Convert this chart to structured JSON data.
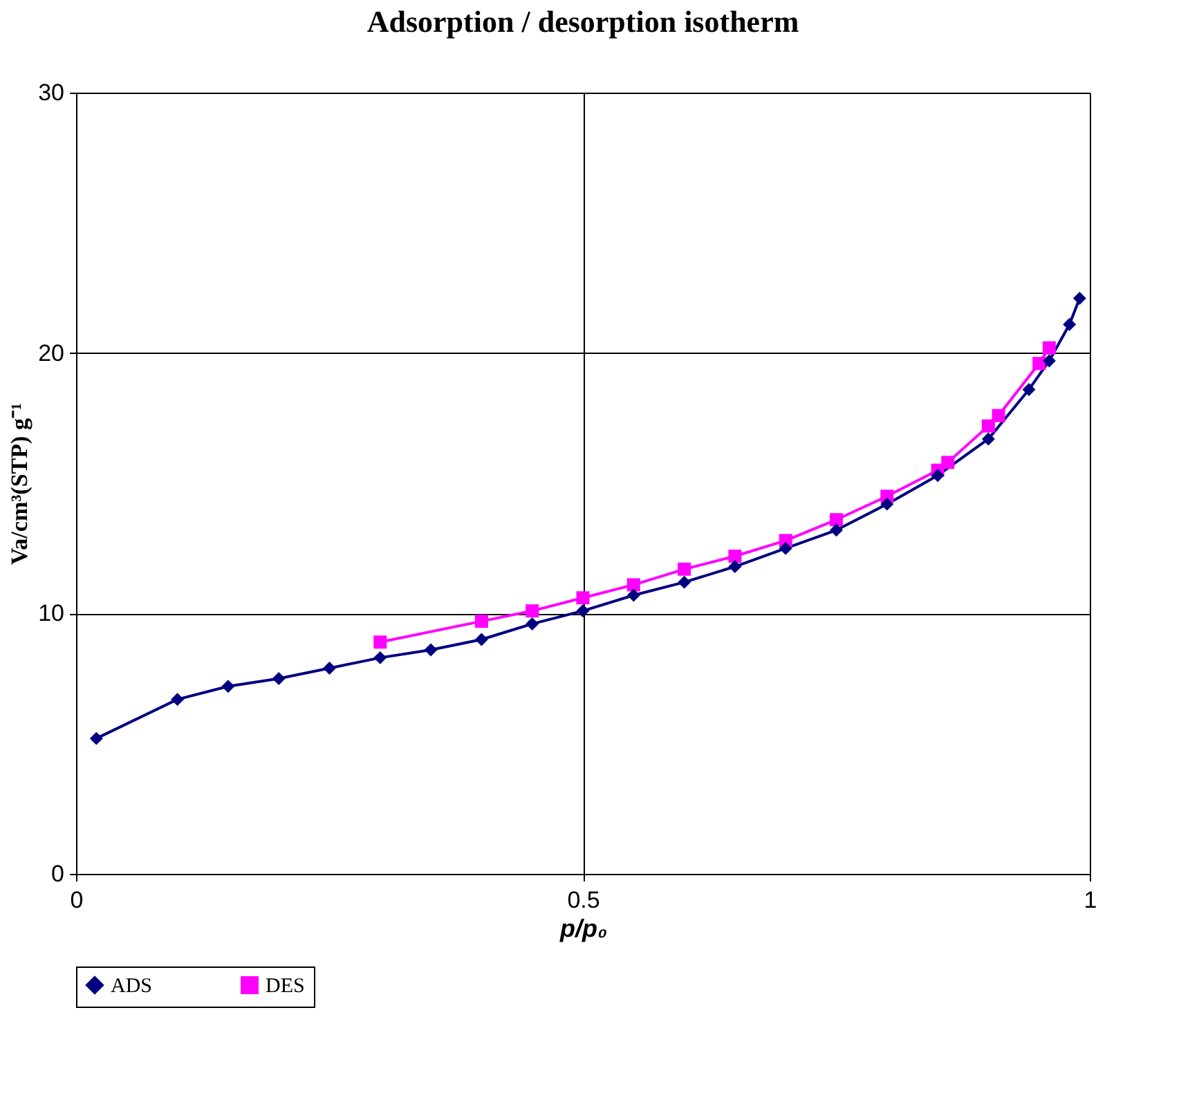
{
  "chart_data": {
    "type": "line",
    "title": "Adsorption / desorption isotherm",
    "xlabel": "p/p₀",
    "ylabel": "Va/cm³(STP) g⁻¹",
    "xlim": [
      0,
      1
    ],
    "xticks": [
      0,
      0.5,
      1
    ],
    "ylim": [
      0,
      30
    ],
    "yticks": [
      0,
      10,
      20,
      30
    ],
    "grid": true,
    "legend": "bottom",
    "line_style": "solid",
    "series": [
      {
        "name": "ADS",
        "color": "#000080",
        "marker": "diamond",
        "x": [
          0.02,
          0.1,
          0.15,
          0.2,
          0.25,
          0.3,
          0.35,
          0.4,
          0.45,
          0.5,
          0.55,
          0.6,
          0.65,
          0.7,
          0.75,
          0.8,
          0.85,
          0.9,
          0.94,
          0.96,
          0.98,
          0.99
        ],
        "values": [
          5.2,
          6.7,
          7.2,
          7.5,
          7.9,
          8.3,
          8.6,
          9.0,
          9.6,
          10.1,
          10.7,
          11.2,
          11.8,
          12.5,
          13.2,
          14.2,
          15.3,
          16.7,
          18.6,
          19.7,
          21.1,
          22.1
        ]
      },
      {
        "name": "DES",
        "color": "#ff00ff",
        "marker": "square",
        "x": [
          0.3,
          0.4,
          0.45,
          0.5,
          0.55,
          0.6,
          0.65,
          0.7,
          0.75,
          0.8,
          0.85,
          0.86,
          0.9,
          0.91,
          0.95,
          0.96
        ],
        "values": [
          8.9,
          9.7,
          10.1,
          10.6,
          11.1,
          11.7,
          12.2,
          12.8,
          13.6,
          14.5,
          15.5,
          15.8,
          17.2,
          17.6,
          19.6,
          20.2
        ]
      }
    ]
  }
}
